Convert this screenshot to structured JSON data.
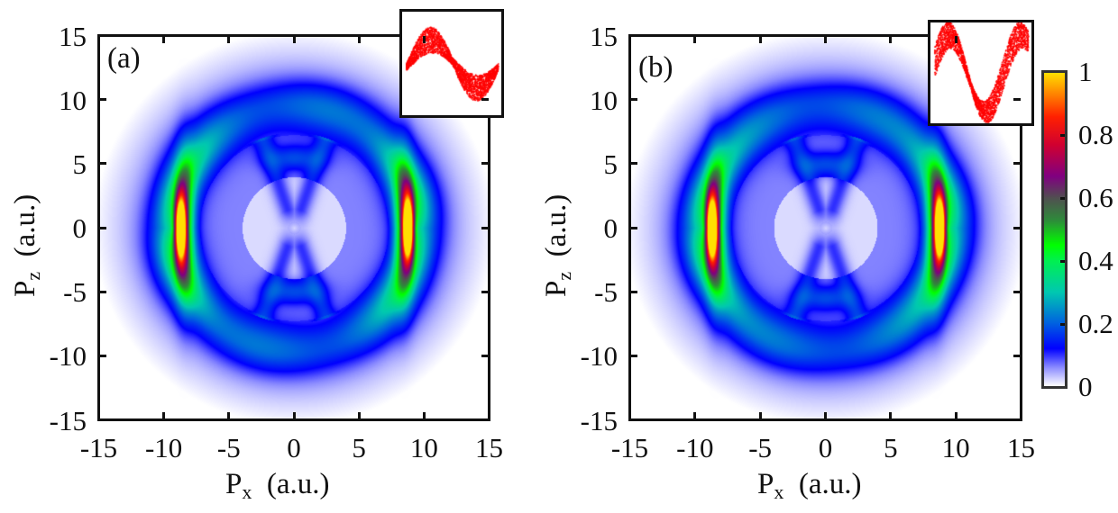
{
  "chart_data": [
    {
      "type": "heatmap",
      "panel_label": "(a)",
      "xlabel_main": "P",
      "xlabel_sub": "x",
      "xlabel_unit": "(a.u.)",
      "ylabel_main": "P",
      "ylabel_sub": "z",
      "ylabel_unit": "(a.u.)",
      "xlim": [
        -15,
        15
      ],
      "ylim": [
        -15,
        15
      ],
      "xticks": [
        "-15",
        "-10",
        "-5",
        "0",
        "5",
        "10",
        "15"
      ],
      "yticks": [
        "15",
        "10",
        "5",
        "0",
        "-5",
        "-10",
        "-15"
      ],
      "features": {
        "ring_radius": 9.5,
        "peak_positions": [
          [
            -8.8,
            0
          ],
          [
            8.8,
            0
          ]
        ],
        "peak_value": 1,
        "side_lobe_value": 0.45,
        "inner_blobs": [
          [
            0,
            5.5
          ],
          [
            0,
            -5
          ]
        ],
        "inner_blob_value": 0.2
      },
      "inset": {
        "type": "scatter",
        "color": "#ff0000",
        "shape": "single sine period"
      }
    },
    {
      "type": "heatmap",
      "panel_label": "(b)",
      "xlabel_main": "P",
      "xlabel_sub": "x",
      "xlabel_unit": "(a.u.)",
      "ylabel_main": "P",
      "ylabel_sub": "z",
      "ylabel_unit": "(a.u.)",
      "xlim": [
        -15,
        15
      ],
      "ylim": [
        -15,
        15
      ],
      "xticks": [
        "-15",
        "-10",
        "-5",
        "0",
        "5",
        "10",
        "15"
      ],
      "yticks": [
        "15",
        "10",
        "5",
        "0",
        "-5",
        "-10",
        "-15"
      ],
      "features": {
        "ring_radius": 9.5,
        "peak_positions": [
          [
            -8.8,
            0
          ],
          [
            8.8,
            0
          ]
        ],
        "peak_value": 1,
        "side_lobe_value": 0.45,
        "inner_blobs": [
          [
            0,
            5
          ],
          [
            0,
            -5.5
          ]
        ],
        "inner_blob_value": 0.2
      },
      "inset": {
        "type": "scatter",
        "color": "#ff0000",
        "shape": "two-hump sine"
      }
    }
  ],
  "colorbar": {
    "ticks": [
      "1",
      "0.8",
      "0.6",
      "0.4",
      "0.2",
      "0"
    ],
    "range": [
      0,
      1
    ]
  }
}
